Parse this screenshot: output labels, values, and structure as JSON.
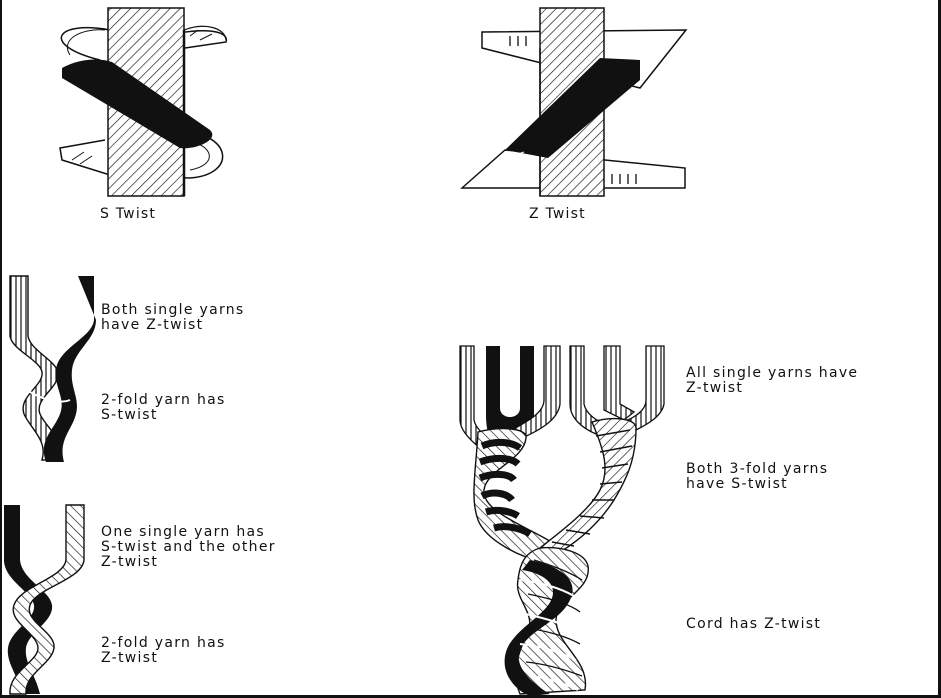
{
  "captions": {
    "s_twist": "S Twist",
    "z_twist": "Z Twist"
  },
  "labels": {
    "both_single_line1": "Both single yarns",
    "both_single_line2": "have Z-twist",
    "twofold_s_line1": "2-fold yarn has",
    "twofold_s_line2": "S-twist",
    "one_single_line1": "One single yarn has",
    "one_single_line2": "S-twist and the other",
    "one_single_line3": "Z-twist",
    "twofold_z_line1": "2-fold yarn has",
    "twofold_z_line2": "Z-twist",
    "all_single_line1": "All single yarns have",
    "all_single_line2": "Z-twist",
    "both_3fold_line1": "Both 3-fold yarns",
    "both_3fold_line2": "have S-twist",
    "cord": "Cord has Z-twist"
  },
  "colors": {
    "ink": "#111111",
    "paper": "#ffffff"
  }
}
